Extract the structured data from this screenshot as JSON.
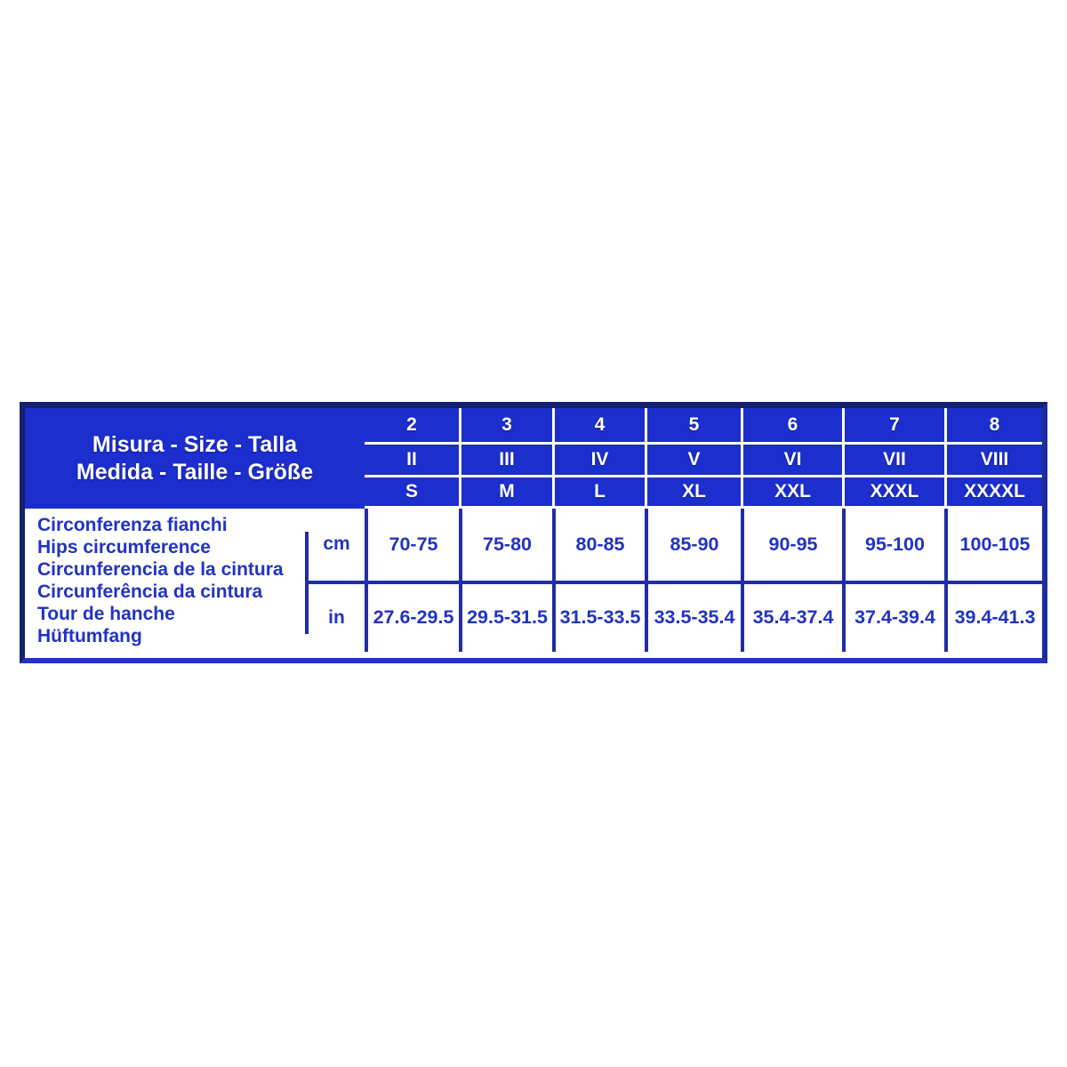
{
  "chart_data": {
    "type": "table",
    "title_lines": [
      "Misura - Size - Talla",
      "Medida - Taille - Größe"
    ],
    "columns": [
      {
        "number": "2",
        "roman": "II",
        "letter": "S",
        "cm": "70-75",
        "in": "27.6-29.5"
      },
      {
        "number": "3",
        "roman": "III",
        "letter": "M",
        "cm": "75-80",
        "in": "29.5-31.5"
      },
      {
        "number": "4",
        "roman": "IV",
        "letter": "L",
        "cm": "80-85",
        "in": "31.5-33.5"
      },
      {
        "number": "5",
        "roman": "V",
        "letter": "XL",
        "cm": "85-90",
        "in": "33.5-35.4"
      },
      {
        "number": "6",
        "roman": "VI",
        "letter": "XXL",
        "cm": "90-95",
        "in": "35.4-37.4"
      },
      {
        "number": "7",
        "roman": "VII",
        "letter": "XXXL",
        "cm": "95-100",
        "in": "37.4-39.4"
      },
      {
        "number": "8",
        "roman": "VIII",
        "letter": "XXXXL",
        "cm": "100-105",
        "in": "39.4-41.3"
      }
    ],
    "measurement_label_lines": [
      "Circonferenza fianchi",
      "Hips circumference",
      "Circunferencia de la cintura",
      "Circunferência da cintura",
      "Tour de hanche",
      "Hüftumfang"
    ],
    "units": {
      "metric": "cm",
      "imperial": "in"
    }
  },
  "colors": {
    "header_blue": "#1D2ECE",
    "grid_line_blue": "#1F2DA6",
    "text_blue": "#2133C4",
    "border_navy": "#15206E",
    "header_text": "#ffffff",
    "page_background": "#ffffff"
  }
}
